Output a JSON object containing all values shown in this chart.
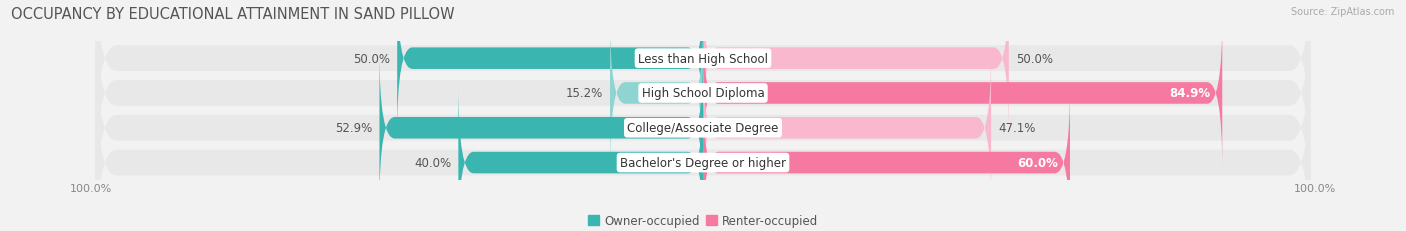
{
  "title": "OCCUPANCY BY EDUCATIONAL ATTAINMENT IN SAND PILLOW",
  "source": "Source: ZipAtlas.com",
  "categories": [
    "Less than High School",
    "High School Diploma",
    "College/Associate Degree",
    "Bachelor's Degree or higher"
  ],
  "owner_values": [
    50.0,
    15.2,
    52.9,
    40.0
  ],
  "renter_values": [
    50.0,
    84.9,
    47.1,
    60.0
  ],
  "owner_color": "#3ab5b0",
  "owner_color_light": "#8ed4d1",
  "renter_color": "#f579a0",
  "renter_color_light": "#f9b8ce",
  "bar_height": 0.62,
  "row_bg_color": "#e8e8e8",
  "background_color": "#f2f2f2",
  "title_fontsize": 10.5,
  "label_fontsize": 8.5,
  "value_fontsize": 8.5,
  "axis_label_fontsize": 8,
  "legend_fontsize": 8.5,
  "max_val": 100.0,
  "x_left_label": "100.0%",
  "x_right_label": "100.0%"
}
